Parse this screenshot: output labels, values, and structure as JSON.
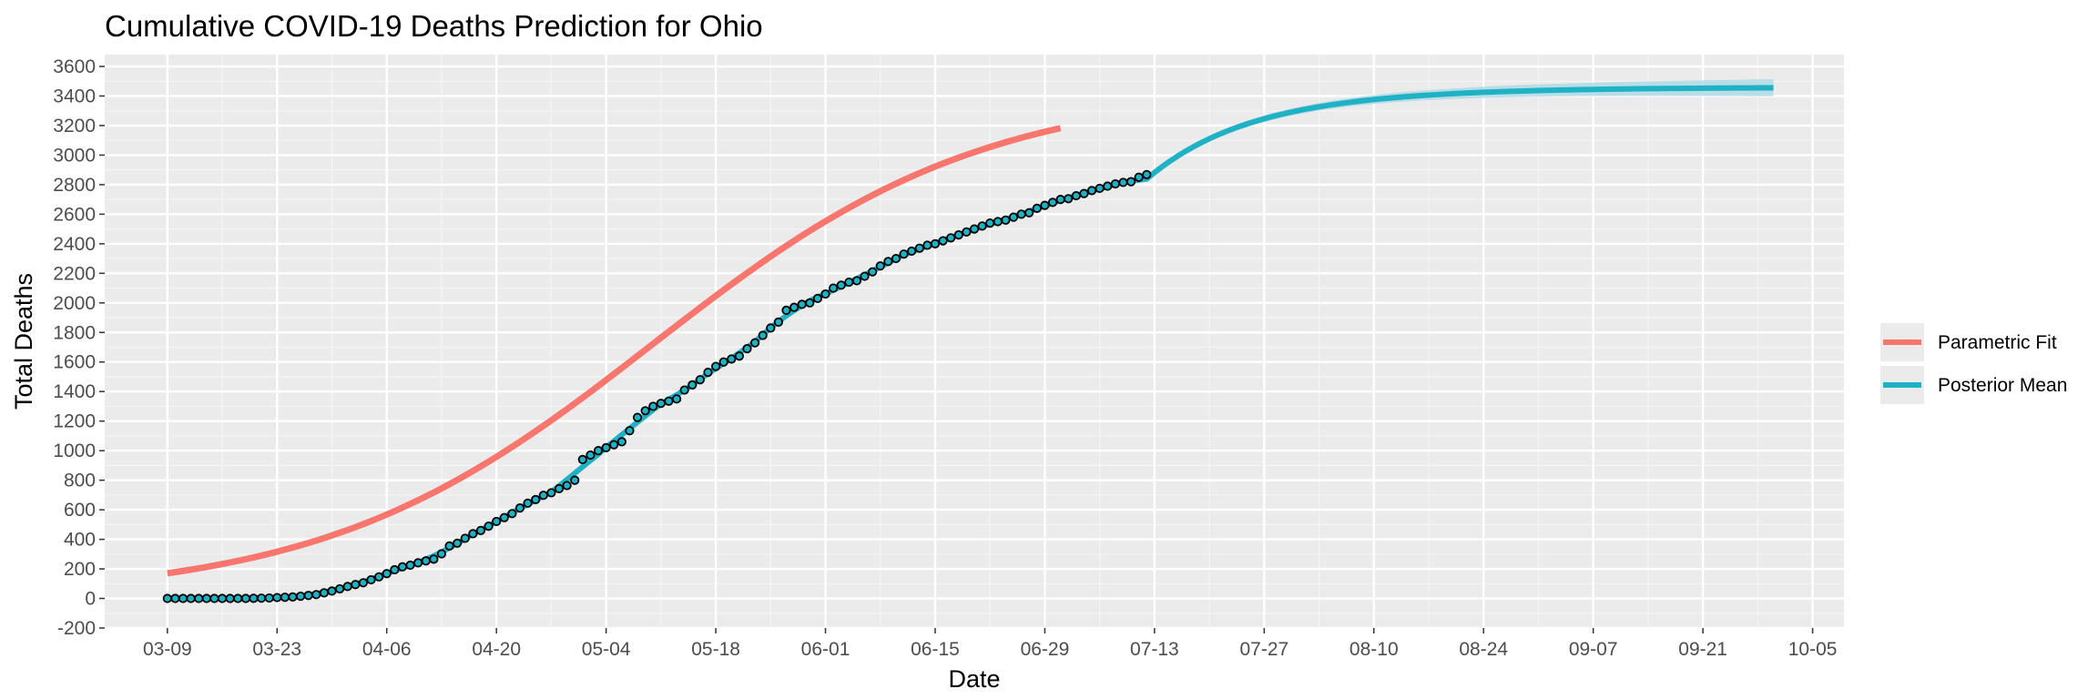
{
  "chart_data": {
    "type": "line",
    "title": "Cumulative COVID-19 Deaths Prediction for Ohio",
    "xlabel": "Date",
    "ylabel": "Total Deaths",
    "x_start_date": "2020-03-09",
    "x_end_date": "2020-09-30",
    "xlim": [
      "2020-03-01",
      "2020-10-09"
    ],
    "ylim": [
      -200,
      3680
    ],
    "y_ticks": [
      -200,
      0,
      200,
      400,
      600,
      800,
      1000,
      1200,
      1400,
      1600,
      1800,
      2000,
      2200,
      2400,
      2600,
      2800,
      3000,
      3200,
      3400,
      3600
    ],
    "x_ticks": [
      {
        "label": "03-09",
        "date": "2020-03-09"
      },
      {
        "label": "03-23",
        "date": "2020-03-23"
      },
      {
        "label": "04-06",
        "date": "2020-04-06"
      },
      {
        "label": "04-20",
        "date": "2020-04-20"
      },
      {
        "label": "05-04",
        "date": "2020-05-04"
      },
      {
        "label": "05-18",
        "date": "2020-05-18"
      },
      {
        "label": "06-01",
        "date": "2020-06-01"
      },
      {
        "label": "06-15",
        "date": "2020-06-15"
      },
      {
        "label": "06-29",
        "date": "2020-06-29"
      },
      {
        "label": "07-13",
        "date": "2020-07-13"
      },
      {
        "label": "07-27",
        "date": "2020-07-27"
      },
      {
        "label": "08-10",
        "date": "2020-08-10"
      },
      {
        "label": "08-24",
        "date": "2020-08-24"
      },
      {
        "label": "09-07",
        "date": "2020-09-07"
      },
      {
        "label": "09-21",
        "date": "2020-09-21"
      },
      {
        "label": "10-05",
        "date": "2020-10-05"
      }
    ],
    "grid": true,
    "legend_position": "right",
    "series": [
      {
        "name": "Parametric Fit",
        "color": "#F8766D",
        "kind": "line",
        "end_date": "2020-07-01"
      },
      {
        "name": "Posterior Mean",
        "color": "#1FB1C4",
        "kind": "line",
        "band": true,
        "band_color": "#A8D8E6",
        "end_date": "2020-09-30"
      }
    ],
    "observed_dates_start": "2020-03-09",
    "observed_deaths": [
      0,
      0,
      0,
      0,
      0,
      0,
      0,
      0,
      0,
      0,
      0,
      1,
      2,
      3,
      6,
      8,
      10,
      15,
      20,
      26,
      38,
      50,
      65,
      81,
      94,
      106,
      126,
      146,
      168,
      194,
      214,
      225,
      241,
      254,
      266,
      302,
      355,
      374,
      407,
      438,
      460,
      489,
      521,
      547,
      574,
      612,
      645,
      669,
      698,
      715,
      743,
      764,
      800,
      940,
      970,
      1000,
      1020,
      1040,
      1060,
      1135,
      1225,
      1270,
      1300,
      1320,
      1335,
      1350,
      1410,
      1445,
      1480,
      1530,
      1570,
      1600,
      1620,
      1640,
      1690,
      1730,
      1780,
      1830,
      1870,
      1950,
      1970,
      1990,
      2000,
      2030,
      2060,
      2100,
      2120,
      2140,
      2150,
      2180,
      2210,
      2250,
      2280,
      2300,
      2330,
      2350,
      2370,
      2390,
      2400,
      2420,
      2440,
      2460,
      2480,
      2500,
      2520,
      2540,
      2550,
      2560,
      2580,
      2600,
      2610,
      2640,
      2660,
      2680,
      2700,
      2705,
      2725,
      2740,
      2760,
      2775,
      2790,
      2805,
      2815,
      2820,
      2850,
      2868
    ]
  },
  "legend": {
    "items": [
      {
        "label": "Parametric Fit",
        "color": "#F8766D"
      },
      {
        "label": "Posterior Mean",
        "color": "#1FB1C4"
      }
    ]
  },
  "colors": {
    "panel_background": "#EBEBEB",
    "grid_major": "#FFFFFF",
    "point_fill": "#1FB1C4",
    "point_stroke": "#000000"
  }
}
